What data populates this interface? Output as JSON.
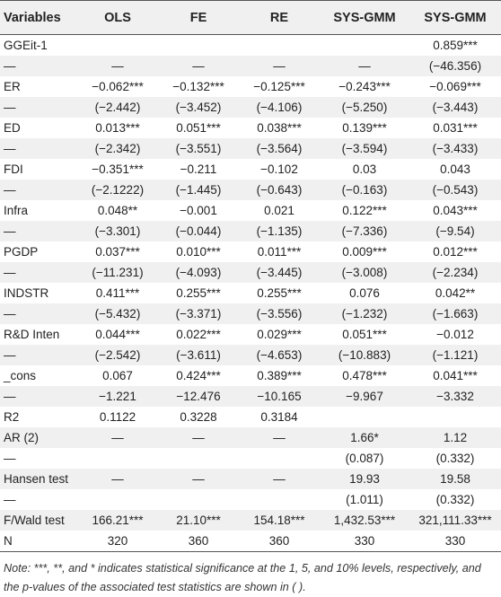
{
  "table": {
    "headers": [
      "Variables",
      "OLS",
      "FE",
      "RE",
      "SYS-GMM",
      "SYS-GMM"
    ],
    "rows": [
      [
        "GGEit-1",
        "",
        "",
        "",
        "",
        "0.859***"
      ],
      [
        "—",
        "—",
        "—",
        "—",
        "—",
        "(−46.356)"
      ],
      [
        "ER",
        "−0.062***",
        "−0.132***",
        "−0.125***",
        "−0.243***",
        "−0.069***"
      ],
      [
        "—",
        "(−2.442)",
        "(−3.452)",
        "(−4.106)",
        "(−5.250)",
        "(−3.443)"
      ],
      [
        "ED",
        "0.013***",
        "0.051***",
        "0.038***",
        "0.139***",
        "0.031***"
      ],
      [
        "—",
        "(−2.342)",
        "(−3.551)",
        "(−3.564)",
        "(−3.594)",
        "(−3.433)"
      ],
      [
        "FDI",
        "−0.351***",
        "−0.211",
        "−0.102",
        "0.03",
        "0.043"
      ],
      [
        "—",
        "(−2.1222)",
        "(−1.445)",
        "(−0.643)",
        "(−0.163)",
        "(−0.543)"
      ],
      [
        "Infra",
        "0.048**",
        "−0.001",
        "0.021",
        "0.122***",
        "0.043***"
      ],
      [
        "—",
        "(−3.301)",
        "(−0.044)",
        "(−1.135)",
        "(−7.336)",
        "(−9.54)"
      ],
      [
        "PGDP",
        "0.037***",
        "0.010***",
        "0.011***",
        "0.009***",
        "0.012***"
      ],
      [
        "—",
        "(−11.231)",
        "(−4.093)",
        "(−3.445)",
        "(−3.008)",
        "(−2.234)"
      ],
      [
        "INDSTR",
        "0.411***",
        "0.255***",
        "0.255***",
        "0.076",
        "0.042**"
      ],
      [
        "—",
        "(−5.432)",
        "(−3.371)",
        "(−3.556)",
        "(−1.232)",
        "(−1.663)"
      ],
      [
        "R&D Inten",
        "0.044***",
        "0.022***",
        "0.029***",
        "0.051***",
        "−0.012"
      ],
      [
        "—",
        "(−2.542)",
        "(−3.611)",
        "(−4.653)",
        "(−10.883)",
        "(−1.121)"
      ],
      [
        "_cons",
        "0.067",
        "0.424***",
        "0.389***",
        "0.478***",
        "0.041***"
      ],
      [
        "—",
        "−1.221",
        "−12.476",
        "−10.165",
        "−9.967",
        "−3.332"
      ],
      [
        "R2",
        "0.1122",
        "0.3228",
        "0.3184",
        "",
        ""
      ],
      [
        "AR (2)",
        "—",
        "—",
        "—",
        "1.66*",
        "1.12"
      ],
      [
        "—",
        "",
        "",
        "",
        "(0.087)",
        "(0.332)"
      ],
      [
        "Hansen test",
        "—",
        "—",
        "—",
        "19.93",
        "19.58"
      ],
      [
        "—",
        "",
        "",
        "",
        "(1.011)",
        "(0.332)"
      ],
      [
        "F/Wald test",
        "166.21***",
        "21.10***",
        "154.18***",
        "1,432.53***",
        "321,111.33***"
      ],
      [
        "N",
        "320",
        "360",
        "360",
        "330",
        "330"
      ]
    ]
  },
  "note": "Note: ***, **, and * indicates statistical significance at the 1, 5, and 10% levels, respectively, and the p-values of the associated test statistics are shown in ( )."
}
